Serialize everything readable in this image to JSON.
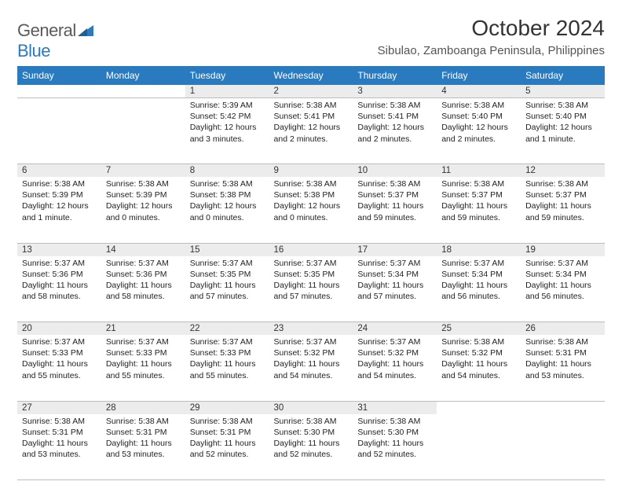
{
  "brand": {
    "part1": "General",
    "part2": "Blue"
  },
  "title": "October 2024",
  "location": "Sibulao, Zamboanga Peninsula, Philippines",
  "colors": {
    "header_bg": "#2a7ac0",
    "header_text": "#ffffff",
    "daynum_bg": "#ececec",
    "border": "#bcbcbc",
    "body_text": "#222222",
    "logo_gray": "#5a5a5a",
    "logo_blue": "#2a7ac0"
  },
  "day_headers": [
    "Sunday",
    "Monday",
    "Tuesday",
    "Wednesday",
    "Thursday",
    "Friday",
    "Saturday"
  ],
  "weeks": [
    [
      null,
      null,
      {
        "n": "1",
        "sr": "5:39 AM",
        "ss": "5:42 PM",
        "dl": "12 hours and 3 minutes."
      },
      {
        "n": "2",
        "sr": "5:38 AM",
        "ss": "5:41 PM",
        "dl": "12 hours and 2 minutes."
      },
      {
        "n": "3",
        "sr": "5:38 AM",
        "ss": "5:41 PM",
        "dl": "12 hours and 2 minutes."
      },
      {
        "n": "4",
        "sr": "5:38 AM",
        "ss": "5:40 PM",
        "dl": "12 hours and 2 minutes."
      },
      {
        "n": "5",
        "sr": "5:38 AM",
        "ss": "5:40 PM",
        "dl": "12 hours and 1 minute."
      }
    ],
    [
      {
        "n": "6",
        "sr": "5:38 AM",
        "ss": "5:39 PM",
        "dl": "12 hours and 1 minute."
      },
      {
        "n": "7",
        "sr": "5:38 AM",
        "ss": "5:39 PM",
        "dl": "12 hours and 0 minutes."
      },
      {
        "n": "8",
        "sr": "5:38 AM",
        "ss": "5:38 PM",
        "dl": "12 hours and 0 minutes."
      },
      {
        "n": "9",
        "sr": "5:38 AM",
        "ss": "5:38 PM",
        "dl": "12 hours and 0 minutes."
      },
      {
        "n": "10",
        "sr": "5:38 AM",
        "ss": "5:37 PM",
        "dl": "11 hours and 59 minutes."
      },
      {
        "n": "11",
        "sr": "5:38 AM",
        "ss": "5:37 PM",
        "dl": "11 hours and 59 minutes."
      },
      {
        "n": "12",
        "sr": "5:38 AM",
        "ss": "5:37 PM",
        "dl": "11 hours and 59 minutes."
      }
    ],
    [
      {
        "n": "13",
        "sr": "5:37 AM",
        "ss": "5:36 PM",
        "dl": "11 hours and 58 minutes."
      },
      {
        "n": "14",
        "sr": "5:37 AM",
        "ss": "5:36 PM",
        "dl": "11 hours and 58 minutes."
      },
      {
        "n": "15",
        "sr": "5:37 AM",
        "ss": "5:35 PM",
        "dl": "11 hours and 57 minutes."
      },
      {
        "n": "16",
        "sr": "5:37 AM",
        "ss": "5:35 PM",
        "dl": "11 hours and 57 minutes."
      },
      {
        "n": "17",
        "sr": "5:37 AM",
        "ss": "5:34 PM",
        "dl": "11 hours and 57 minutes."
      },
      {
        "n": "18",
        "sr": "5:37 AM",
        "ss": "5:34 PM",
        "dl": "11 hours and 56 minutes."
      },
      {
        "n": "19",
        "sr": "5:37 AM",
        "ss": "5:34 PM",
        "dl": "11 hours and 56 minutes."
      }
    ],
    [
      {
        "n": "20",
        "sr": "5:37 AM",
        "ss": "5:33 PM",
        "dl": "11 hours and 55 minutes."
      },
      {
        "n": "21",
        "sr": "5:37 AM",
        "ss": "5:33 PM",
        "dl": "11 hours and 55 minutes."
      },
      {
        "n": "22",
        "sr": "5:37 AM",
        "ss": "5:33 PM",
        "dl": "11 hours and 55 minutes."
      },
      {
        "n": "23",
        "sr": "5:37 AM",
        "ss": "5:32 PM",
        "dl": "11 hours and 54 minutes."
      },
      {
        "n": "24",
        "sr": "5:37 AM",
        "ss": "5:32 PM",
        "dl": "11 hours and 54 minutes."
      },
      {
        "n": "25",
        "sr": "5:38 AM",
        "ss": "5:32 PM",
        "dl": "11 hours and 54 minutes."
      },
      {
        "n": "26",
        "sr": "5:38 AM",
        "ss": "5:31 PM",
        "dl": "11 hours and 53 minutes."
      }
    ],
    [
      {
        "n": "27",
        "sr": "5:38 AM",
        "ss": "5:31 PM",
        "dl": "11 hours and 53 minutes."
      },
      {
        "n": "28",
        "sr": "5:38 AM",
        "ss": "5:31 PM",
        "dl": "11 hours and 53 minutes."
      },
      {
        "n": "29",
        "sr": "5:38 AM",
        "ss": "5:31 PM",
        "dl": "11 hours and 52 minutes."
      },
      {
        "n": "30",
        "sr": "5:38 AM",
        "ss": "5:30 PM",
        "dl": "11 hours and 52 minutes."
      },
      {
        "n": "31",
        "sr": "5:38 AM",
        "ss": "5:30 PM",
        "dl": "11 hours and 52 minutes."
      },
      null,
      null
    ]
  ],
  "labels": {
    "sunrise": "Sunrise:",
    "sunset": "Sunset:",
    "daylight": "Daylight:"
  }
}
